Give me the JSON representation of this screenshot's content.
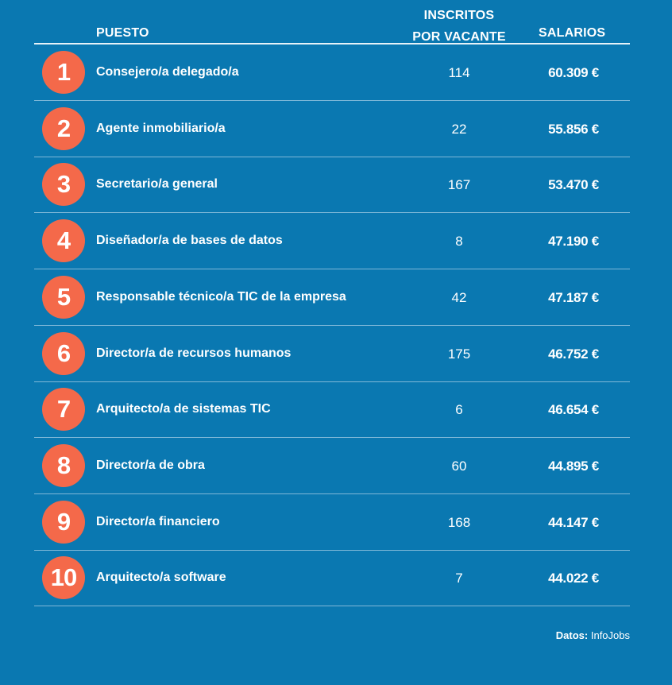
{
  "chart_data": {
    "type": "table",
    "columns": {
      "puesto": "PUESTO",
      "inscritos_line1": "INSCRITOS",
      "inscritos_line2": "POR VACANTE",
      "salarios": "SALARIOS"
    },
    "rows": [
      {
        "rank": "1",
        "puesto": "Consejero/a delegado/a",
        "inscritos": "114",
        "salario": "60.309 €"
      },
      {
        "rank": "2",
        "puesto": "Agente inmobiliario/a",
        "inscritos": "22",
        "salario": "55.856 €"
      },
      {
        "rank": "3",
        "puesto": "Secretario/a general",
        "inscritos": "167",
        "salario": "53.470 €"
      },
      {
        "rank": "4",
        "puesto": "Diseñador/a de bases de datos",
        "inscritos": "8",
        "salario": "47.190 €"
      },
      {
        "rank": "5",
        "puesto": "Responsable técnico/a TIC de la empresa",
        "inscritos": "42",
        "salario": "47.187 €"
      },
      {
        "rank": "6",
        "puesto": "Director/a de recursos humanos",
        "inscritos": "175",
        "salario": "46.752 €"
      },
      {
        "rank": "7",
        "puesto": "Arquitecto/a de sistemas TIC",
        "inscritos": "6",
        "salario": "46.654 €"
      },
      {
        "rank": "8",
        "puesto": "Director/a de obra",
        "inscritos": "60",
        "salario": "44.895 €"
      },
      {
        "rank": "9",
        "puesto": "Director/a financiero",
        "inscritos": "168",
        "salario": "44.147 €"
      },
      {
        "rank": "10",
        "puesto": "Arquitecto/a software",
        "inscritos": "7",
        "salario": "44.022 €"
      }
    ]
  },
  "source": {
    "label": "Datos:",
    "value": " InfoJobs"
  },
  "colors": {
    "background": "#0a78b1",
    "badge": "#f4694a",
    "text": "#ffffff"
  }
}
